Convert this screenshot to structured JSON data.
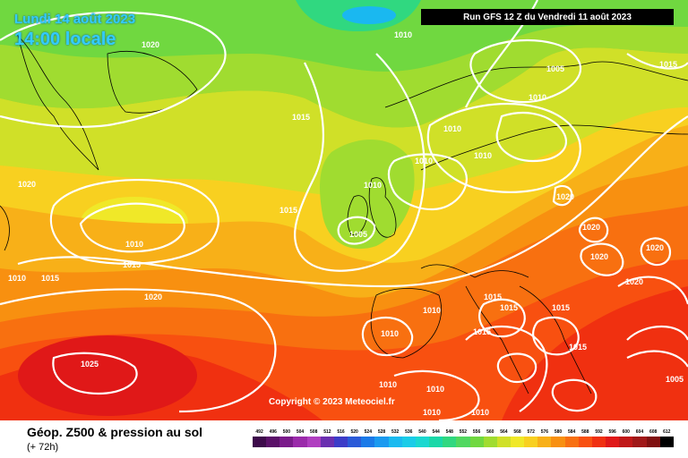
{
  "header": {
    "date": "Lundi 14 août 2023",
    "time": "14:00 locale",
    "run": "Run GFS 12 Z du Vendredi 11 août 2023"
  },
  "copyright": "Copyright © 2023 Meteociel.fr",
  "footer": {
    "title": "Géop. Z500 & pression au sol",
    "subtitle": "(+ 72h)"
  },
  "isobar_labels": [
    "1020",
    "1010",
    "1005",
    "1015",
    "1015",
    "1010",
    "1010",
    "1010",
    "1020",
    "1010",
    "1005",
    "1015",
    "1010",
    "1015",
    "1010",
    "1015",
    "1020",
    "1020",
    "1020",
    "1020",
    "1020",
    "1020",
    "1015",
    "1015",
    "1010",
    "1010",
    "1015",
    "1025",
    "1015",
    "1015",
    "1010",
    "1010",
    "1010",
    "1010",
    "1010",
    "1005"
  ],
  "colorbar": {
    "labels": [
      "492",
      "496",
      "500",
      "504",
      "508",
      "512",
      "516",
      "520",
      "524",
      "528",
      "532",
      "536",
      "540",
      "544",
      "548",
      "552",
      "556",
      "560",
      "564",
      "568",
      "572",
      "576",
      "580",
      "584",
      "588",
      "592",
      "596",
      "600",
      "604",
      "608",
      "612"
    ],
    "colors": [
      "#3d0a4a",
      "#5a1068",
      "#7a1a8a",
      "#9a2aaa",
      "#b03ec0",
      "#6a2fb0",
      "#3c3cc8",
      "#2a5ad8",
      "#1a7ae8",
      "#1a9af0",
      "#1abaf0",
      "#1acce8",
      "#1ad8d0",
      "#1ad8a8",
      "#30d880",
      "#50d860",
      "#70d840",
      "#a0dc30",
      "#d0e028",
      "#f0e828",
      "#f8d020",
      "#f8b018",
      "#f89010",
      "#f87010",
      "#f85010",
      "#f03010",
      "#e01818",
      "#c01818",
      "#a01818",
      "#801010",
      "#000000"
    ]
  }
}
